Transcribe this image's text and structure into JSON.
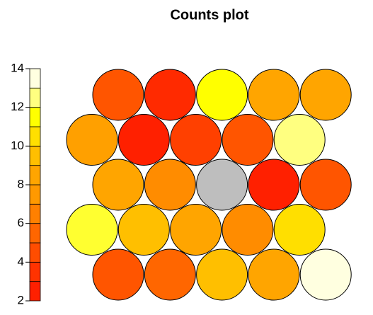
{
  "chart_data": {
    "type": "counts",
    "title": "Counts plot",
    "columns": 5,
    "values": [
      5,
      3,
      11,
      8,
      8,
      8,
      2,
      4,
      5,
      12,
      8,
      7,
      0,
      2,
      5,
      11,
      9,
      8,
      7,
      10,
      5,
      6,
      9,
      8,
      14
    ],
    "colors": [
      "#FF5500",
      "#FF2A00",
      "#FFFF00",
      "#FFA500",
      "#FFA500",
      "#FFA000",
      "#FF2000",
      "#FF4000",
      "#FF5500",
      "#FFFF80",
      "#FFA500",
      "#FF8C00",
      "#BEBEBE",
      "#FF2000",
      "#FF5500",
      "#FFFF30",
      "#FFBF00",
      "#FFA500",
      "#FF8C00",
      "#FFDF00",
      "#FF5500",
      "#FF6600",
      "#FFBF00",
      "#FFA500",
      "#FFFFE0"
    ],
    "colorbar": {
      "ylim": [
        2,
        14
      ],
      "yticks": [
        2,
        4,
        6,
        8,
        10,
        12,
        14
      ],
      "bins": [
        2,
        3,
        4,
        5,
        6,
        7,
        8,
        9,
        10,
        11,
        12,
        13,
        14
      ],
      "colors": [
        "#FF2000",
        "#FF3300",
        "#FF4D00",
        "#FF6600",
        "#FF8000",
        "#FF9900",
        "#FFA500",
        "#FFBF00",
        "#FFDF00",
        "#FFFF00",
        "#FFFF80",
        "#FFFFE0"
      ]
    }
  }
}
